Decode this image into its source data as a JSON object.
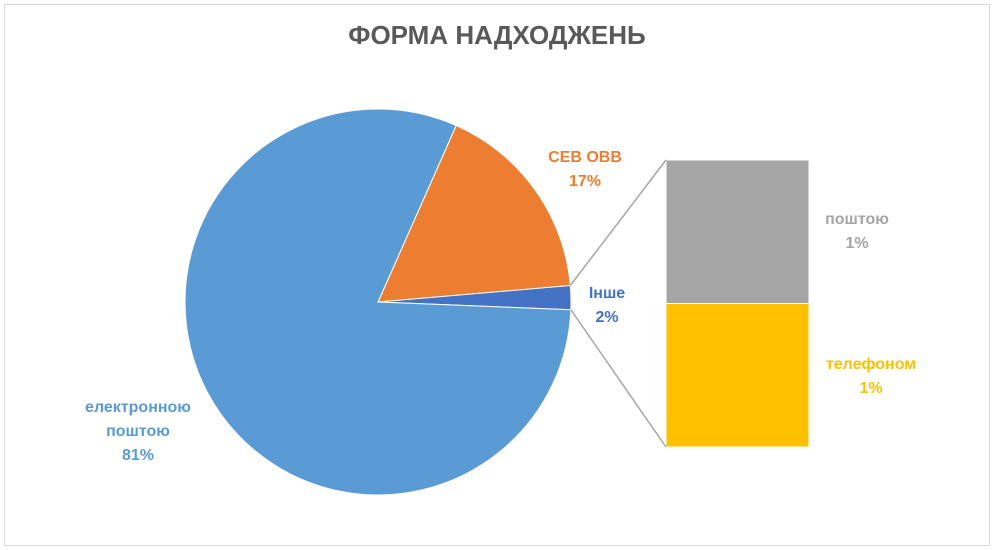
{
  "chart_data": {
    "type": "pie-of-bar",
    "title": "ФОРМА НАДХОДЖЕНЬ",
    "categories": [
      "СЕВ ОВВ",
      "Інше",
      "електронною поштою"
    ],
    "values": [
      17,
      2,
      81
    ],
    "value_labels": [
      "17%",
      "2%",
      "81%"
    ],
    "colors": [
      "#ED7D31",
      "#4472C4",
      "#5B9BD5"
    ],
    "bar": {
      "categories": [
        "поштою",
        "телефоном"
      ],
      "values": [
        1,
        1
      ],
      "value_labels": [
        "1%",
        "1%"
      ],
      "colors": [
        "#A5A5A5",
        "#FFC000"
      ]
    }
  }
}
